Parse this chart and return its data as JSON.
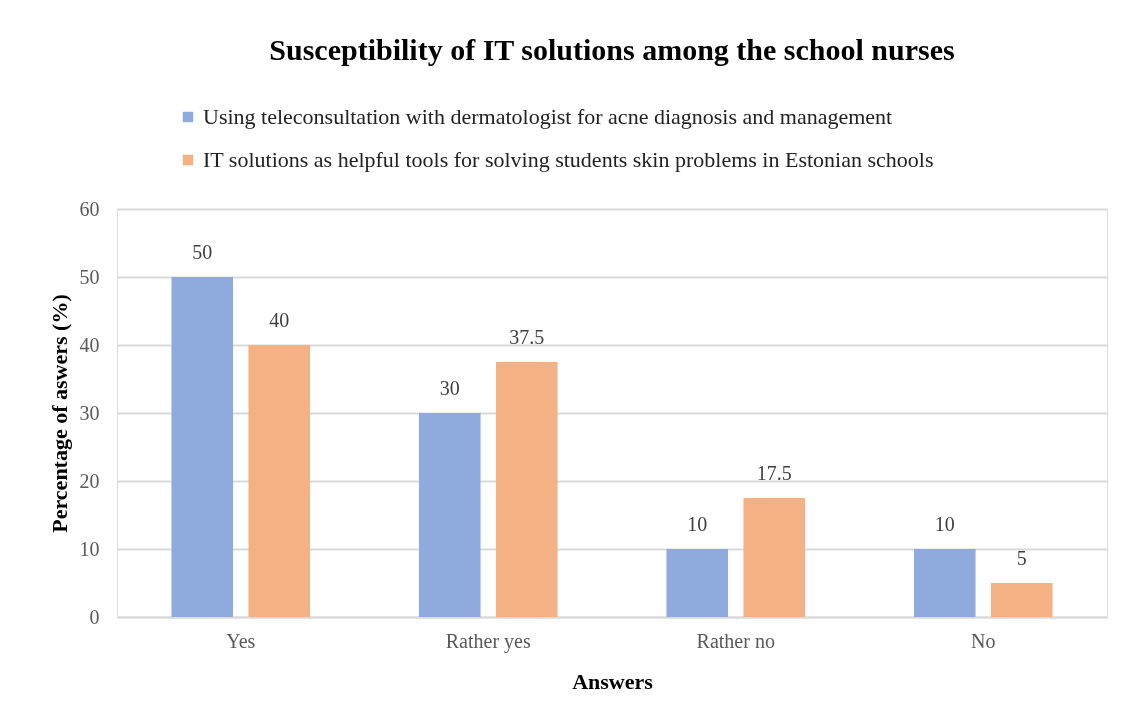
{
  "chart_data": {
    "type": "bar",
    "title": "Susceptibility of IT solutions among the school nurses",
    "xlabel": "Answers",
    "ylabel": "Percentage of aswers (%)",
    "categories": [
      "Yes",
      "Rather yes",
      "Rather no",
      "No"
    ],
    "series": [
      {
        "name": "Using teleconsultation with dermatologist for acne diagnosis and management",
        "color": "#8faadc",
        "values": [
          50,
          30,
          10,
          10
        ]
      },
      {
        "name": "IT solutions as helpful tools for solving students skin problems in Estonian schools",
        "color": "#f4b183",
        "values": [
          40,
          37.5,
          17.5,
          5
        ]
      }
    ],
    "ylim": [
      0,
      60
    ],
    "yticks": [
      0,
      10,
      20,
      30,
      40,
      50,
      60
    ],
    "grid": "y",
    "legend": "top",
    "data_labels": true
  }
}
